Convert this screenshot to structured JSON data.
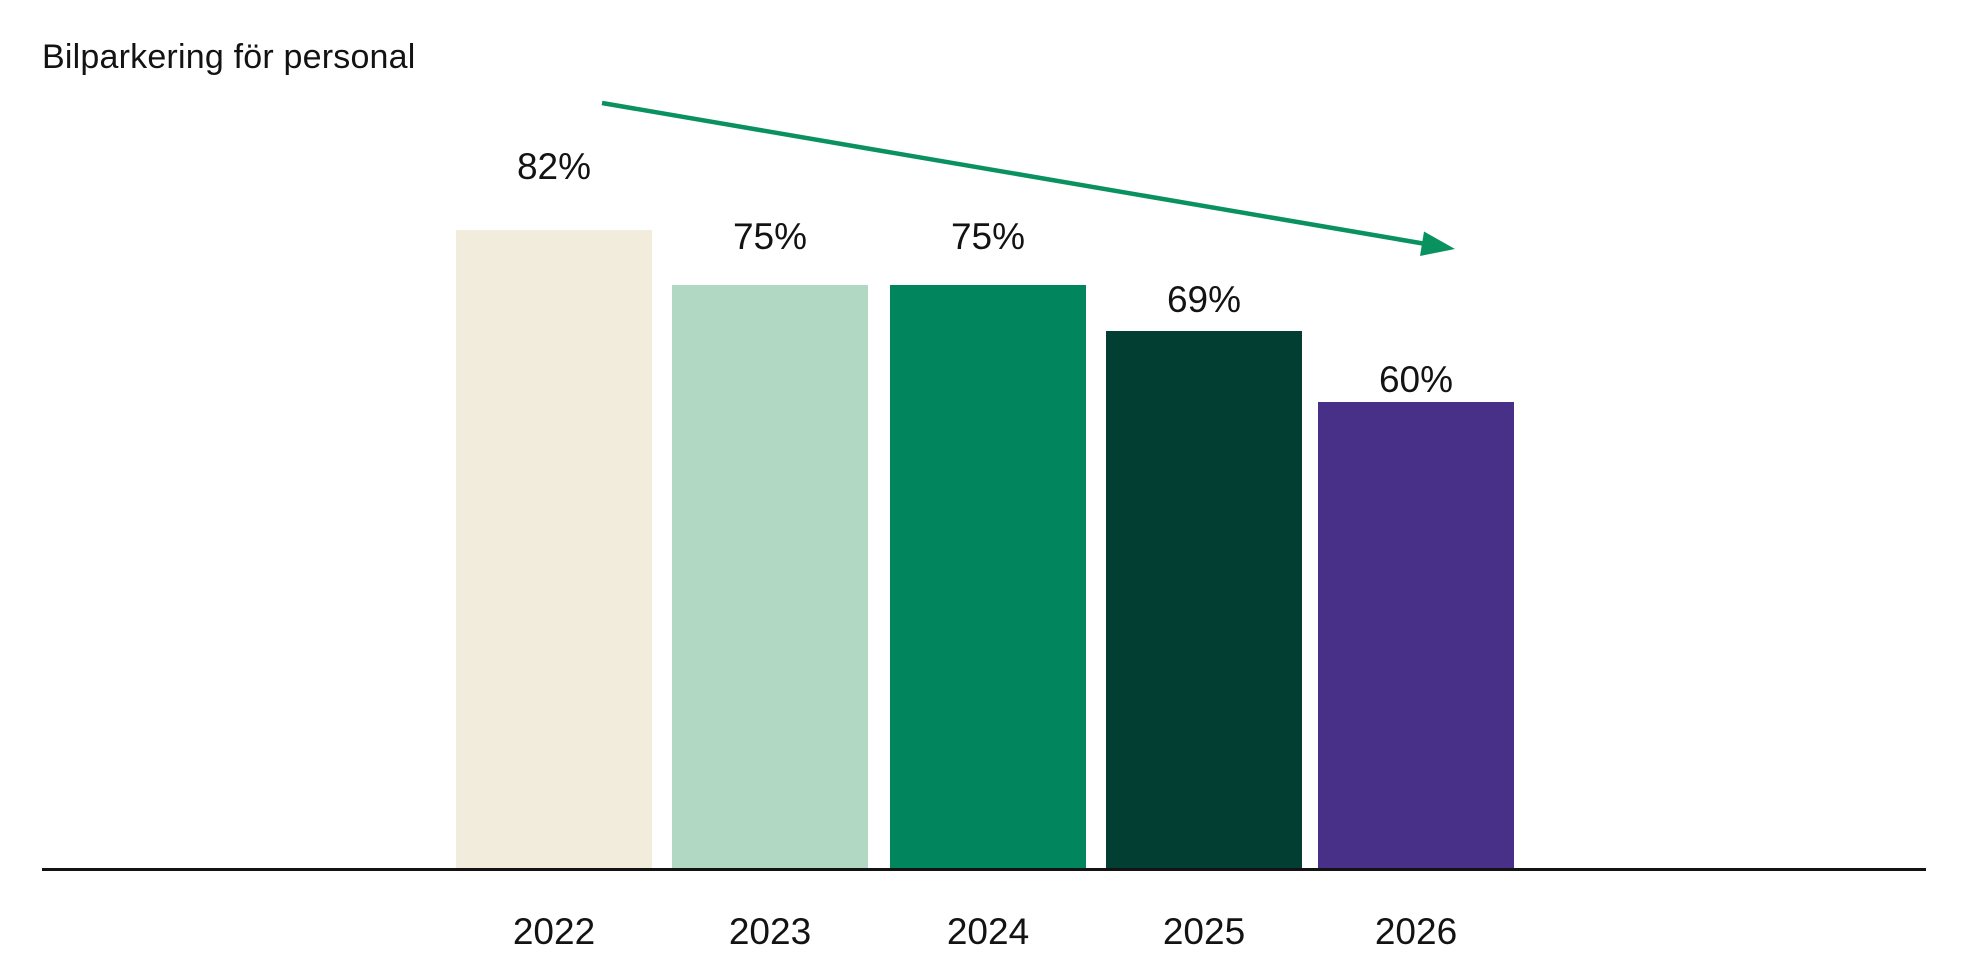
{
  "title": "Bilparkering för personal",
  "chart_data": {
    "type": "bar",
    "title": "Bilparkering för personal",
    "categories": [
      "2022",
      "2023",
      "2024",
      "2025",
      "2026"
    ],
    "values": [
      82,
      75,
      75,
      69,
      60
    ],
    "value_labels": [
      "82%",
      "75%",
      "75%",
      "69%",
      "60%"
    ],
    "xlabel": "",
    "ylabel": "",
    "ylim": [
      0,
      100
    ],
    "grid": false,
    "legend": false,
    "bar_colors": [
      "#F1ECDB",
      "#B1D8C2",
      "#00855C",
      "#023E31",
      "#483089"
    ],
    "annotation": "downward trend arrow",
    "arrow_color": "#0A9160",
    "axis_color": "#131313",
    "text_color": "#131313",
    "background_color": "#FFFFFF"
  }
}
